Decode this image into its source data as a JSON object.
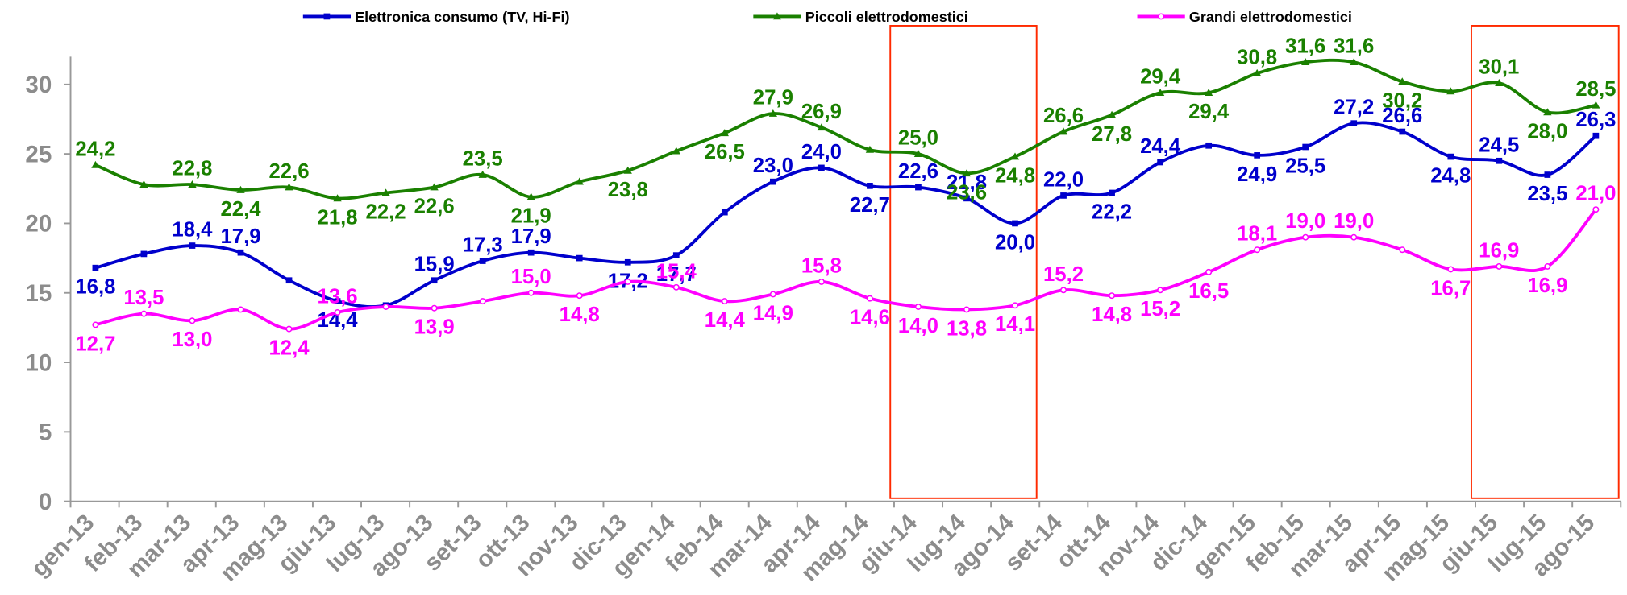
{
  "chart_data": {
    "type": "line",
    "categories": [
      "gen-13",
      "feb-13",
      "mar-13",
      "apr-13",
      "mag-13",
      "giu-13",
      "lug-13",
      "ago-13",
      "set-13",
      "ott-13",
      "nov-13",
      "dic-13",
      "gen-14",
      "feb-14",
      "mar-14",
      "apr-14",
      "mag-14",
      "giu-14",
      "lug-14",
      "ago-14",
      "set-14",
      "ott-14",
      "nov-14",
      "dic-14",
      "gen-15",
      "feb-15",
      "mar-15",
      "apr-15",
      "mag-15",
      "giu-15",
      "lug-15",
      "ago-15"
    ],
    "series": [
      {
        "name": "Elettronica consumo (TV, Hi-Fi)",
        "color": "#0000cc",
        "marker": "square",
        "values": [
          16.8,
          17.8,
          18.4,
          17.9,
          15.9,
          14.4,
          14.1,
          15.9,
          17.3,
          17.9,
          17.5,
          17.2,
          17.7,
          20.8,
          23.0,
          24.0,
          22.7,
          22.6,
          21.8,
          20.0,
          22.0,
          22.2,
          24.4,
          25.6,
          24.9,
          25.5,
          27.2,
          26.6,
          24.8,
          24.5,
          23.5,
          26.3
        ],
        "value_labels": [
          "16,8",
          null,
          "18,4",
          "17,9",
          null,
          "14,4",
          null,
          "15,9",
          "17,3",
          "17,9",
          null,
          "17,2",
          "17,7",
          null,
          "23,0",
          "24,0",
          "22,7",
          "22,6",
          "21,8",
          "20,0",
          "22,0",
          "22,2",
          "24,4",
          null,
          "24,9",
          "25,5",
          "27,2",
          "26,6",
          "24,8",
          "24,5",
          "23,5",
          "26,3"
        ]
      },
      {
        "name": "Piccoli elettrodomestici",
        "color": "#1a8000",
        "marker": "triangle",
        "values": [
          24.2,
          22.8,
          22.8,
          22.4,
          22.6,
          21.8,
          22.2,
          22.6,
          23.5,
          21.9,
          23.0,
          23.8,
          25.2,
          26.5,
          27.9,
          26.9,
          25.3,
          25.0,
          23.6,
          24.8,
          26.6,
          27.8,
          29.4,
          29.4,
          30.8,
          31.6,
          31.6,
          30.2,
          29.5,
          30.1,
          28.0,
          28.5
        ],
        "value_labels": [
          "24,2",
          null,
          "22,8",
          "22,4",
          "22,6",
          "21,8",
          "22,2",
          "22,6",
          "23,5",
          "21,9",
          null,
          "23,8",
          null,
          "26,5",
          "27,9",
          "26,9",
          null,
          "25,0",
          "23,6",
          "24,8",
          "26,6",
          "27,8",
          "29,4",
          "29,4",
          "30,8",
          "31,6",
          "31,6",
          "30,2",
          null,
          "30,1",
          "28,0",
          "28,5"
        ]
      },
      {
        "name": "Grandi elettrodomestici",
        "color": "#ff00ff",
        "marker": "circle",
        "values": [
          12.7,
          13.5,
          13.0,
          13.8,
          12.4,
          13.6,
          14.0,
          13.9,
          14.4,
          15.0,
          14.8,
          15.8,
          15.4,
          14.4,
          14.9,
          15.8,
          14.6,
          14.0,
          13.8,
          14.1,
          15.2,
          14.8,
          15.2,
          16.5,
          18.1,
          19.0,
          19.0,
          18.1,
          16.7,
          16.9,
          16.9,
          21.0
        ],
        "value_labels": [
          "12,7",
          "13,5",
          "13,0",
          null,
          "12,4",
          "13,6",
          null,
          "13,9",
          null,
          "15,0",
          "14,8",
          null,
          "15,4",
          "14,4",
          "14,9",
          "15,8",
          "14,6",
          "14,0",
          "13,8",
          "14,1",
          "15,2",
          "14,8",
          "15,2",
          "16,5",
          "18,1",
          "19,0",
          "19,0",
          null,
          "16,7",
          "16,9",
          "16,9",
          "21,0"
        ]
      }
    ],
    "ylim": [
      0,
      32
    ],
    "yticks": [
      0,
      5,
      10,
      15,
      20,
      25,
      30
    ],
    "legend": "top"
  }
}
